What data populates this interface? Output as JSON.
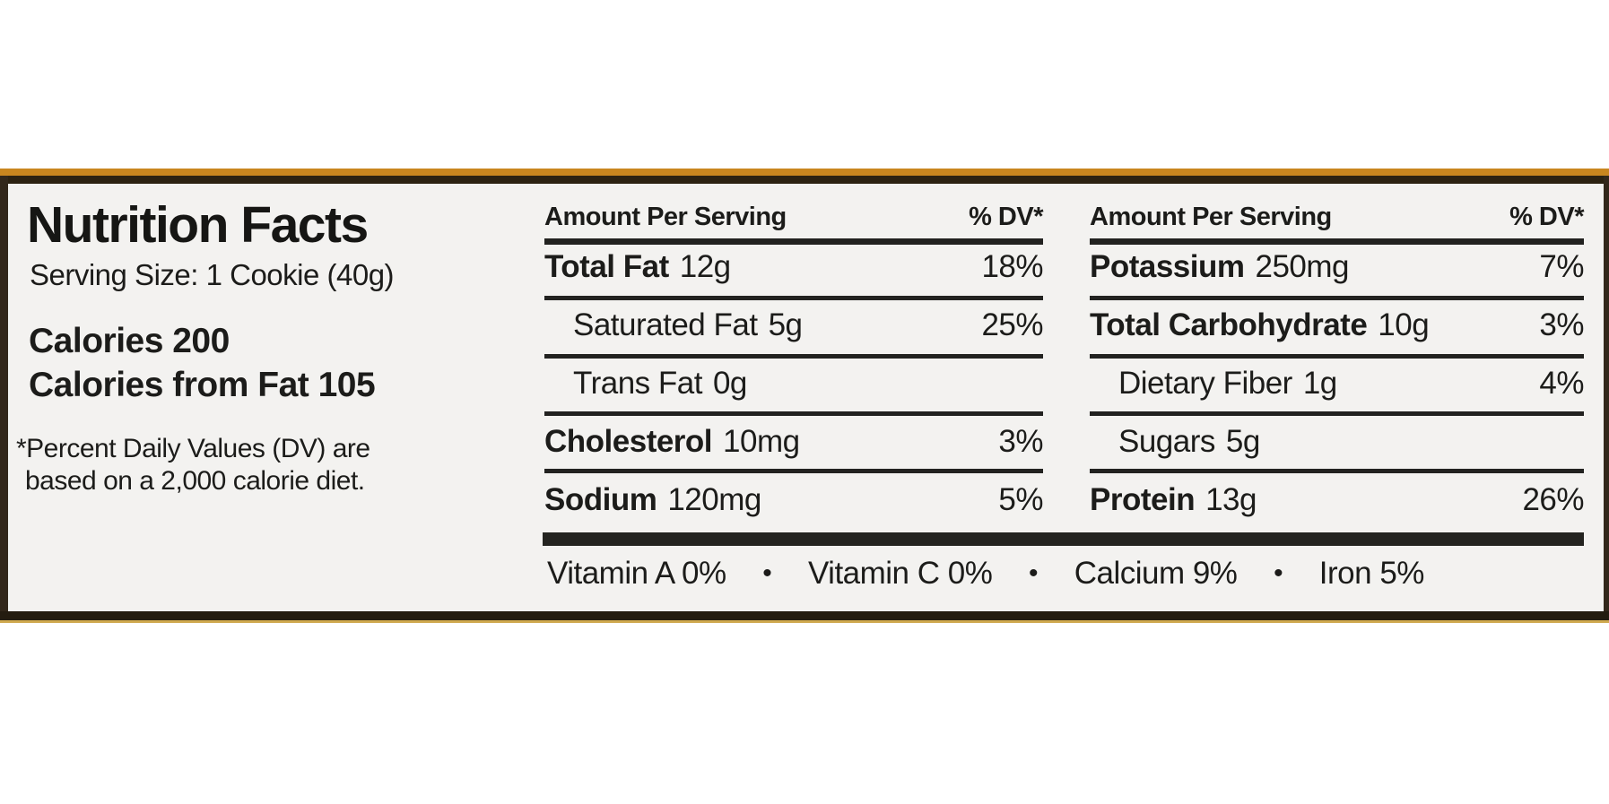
{
  "label": {
    "title": "Nutrition Facts",
    "serving_size": "Serving Size: 1 Cookie (40g)",
    "calories": "Calories 200",
    "calories_from_fat": "Calories from Fat 105",
    "footnote": {
      "line1": "*Percent Daily Values (DV) are",
      "line2": "based on a 2,000 calorie diet."
    },
    "header": {
      "amount": "Amount Per Serving",
      "dv": "% DV*"
    },
    "columns": [
      {
        "rows": [
          {
            "name": "Total Fat",
            "amount": "12g",
            "dv": "18%"
          },
          {
            "name": "Saturated Fat",
            "amount": "5g",
            "dv": "25%"
          },
          {
            "name": "Trans Fat",
            "amount": "0g",
            "dv": ""
          },
          {
            "name": "Cholesterol",
            "amount": "10mg",
            "dv": "3%"
          },
          {
            "name": "Sodium",
            "amount": "120mg",
            "dv": "5%"
          }
        ]
      },
      {
        "rows": [
          {
            "name": "Potassium",
            "amount": "250mg",
            "dv": "7%"
          },
          {
            "name": "Total Carbohydrate",
            "amount": "10g",
            "dv": "3%"
          },
          {
            "name": "Dietary Fiber",
            "amount": "1g",
            "dv": "4%"
          },
          {
            "name": "Sugars",
            "amount": "5g",
            "dv": ""
          },
          {
            "name": "Protein",
            "amount": "13g",
            "dv": "26%"
          }
        ]
      }
    ],
    "micronutrients": [
      "Vitamin A 0%",
      "Vitamin C 0%",
      "Calcium 9%",
      "Iron 5%"
    ],
    "bullet": "•",
    "colors": {
      "package_orange": "#c9861f",
      "border_dark": "#2c2212",
      "label_background": "#f3f2f0",
      "text": "#1c1c1a"
    }
  }
}
